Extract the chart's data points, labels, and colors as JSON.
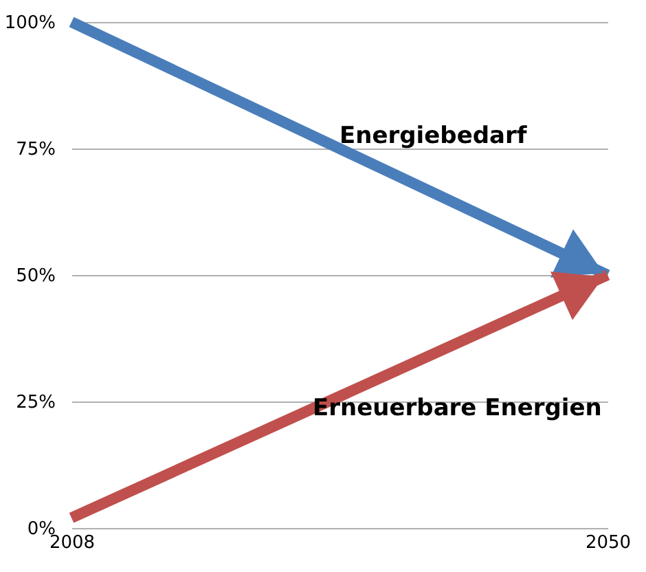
{
  "chart_data": {
    "type": "line",
    "x": [
      2008,
      2050
    ],
    "xlim": [
      2008,
      2050
    ],
    "xticks": [
      2008,
      2050
    ],
    "ylim": [
      0,
      100
    ],
    "yticks": [
      {
        "value": 0,
        "label": "0%"
      },
      {
        "value": 25,
        "label": "25%"
      },
      {
        "value": 50,
        "label": "50%"
      },
      {
        "value": 75,
        "label": "75%"
      },
      {
        "value": 100,
        "label": "100%"
      }
    ],
    "grid": "y",
    "legend": false,
    "marker": "none",
    "series": [
      {
        "name": "Energiebedarf",
        "color": "#4a7ebb",
        "values": [
          100,
          50
        ]
      },
      {
        "name": "Erneuerbare Energien",
        "color": "#c0504d",
        "values": [
          2,
          50
        ]
      }
    ]
  }
}
